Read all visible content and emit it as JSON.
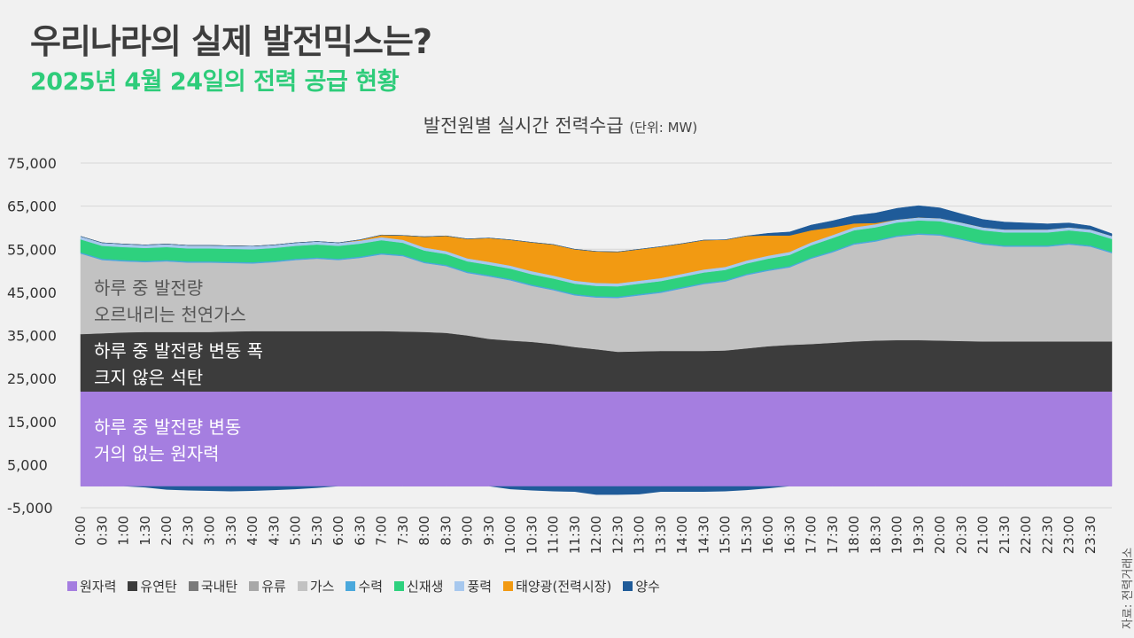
{
  "header": {
    "title": "우리나라의 실제 발전믹스는?",
    "subtitle": "2025년 4월 24일의 전력 공급 현황"
  },
  "chart_title": "발전원별 실시간 전력수급",
  "chart_unit": "(단위: MW)",
  "source": "자료: 전력거래소",
  "annotations": {
    "gas": [
      "하루 중 발전량",
      "오르내리는 천연가스"
    ],
    "coal": [
      "하루 중 발전량 변동 폭",
      "크지 않은 석탄"
    ],
    "nuclear": [
      "하루 중 발전량 변동",
      "거의 없는 원자력"
    ]
  },
  "chart_data": {
    "type": "area",
    "stacked": true,
    "title": "발전원별 실시간 전력수급",
    "unit": "MW",
    "ylim": [
      -5000,
      75000
    ],
    "y_ticks": [
      -5000,
      5000,
      15000,
      25000,
      35000,
      45000,
      55000,
      65000,
      75000
    ],
    "y_tick_labels": [
      "-5,000",
      "5,000",
      "15,000",
      "25,000",
      "35,000",
      "45,000",
      "55,000",
      "65,000",
      "75,000"
    ],
    "x_labels": [
      "0:00",
      "0:30",
      "1:00",
      "1:30",
      "2:00",
      "2:30",
      "3:00",
      "3:30",
      "4:00",
      "4:30",
      "5:00",
      "5:30",
      "6:00",
      "6:30",
      "7:00",
      "7:30",
      "8:00",
      "8:30",
      "9:00",
      "9:30",
      "10:00",
      "10:30",
      "11:00",
      "11:30",
      "12:00",
      "12:30",
      "13:00",
      "13:30",
      "14:00",
      "14:30",
      "15:00",
      "15:30",
      "16:00",
      "16:30",
      "17:00",
      "17:30",
      "18:00",
      "18:30",
      "19:00",
      "19:30",
      "20:00",
      "20:30",
      "21:00",
      "21:30",
      "22:00",
      "22:30",
      "23:00",
      "23:30"
    ],
    "x_hours": [
      0,
      0.5,
      1,
      1.5,
      2,
      2.5,
      3,
      3.5,
      4,
      4.5,
      5,
      5.5,
      6,
      6.5,
      7,
      7.5,
      8,
      8.5,
      9,
      9.5,
      10,
      10.5,
      11,
      11.5,
      12,
      12.5,
      13,
      13.5,
      14,
      14.5,
      15,
      15.5,
      16,
      16.5,
      17,
      17.5,
      18,
      18.5,
      19,
      19.5,
      20,
      20.5,
      21,
      21.5,
      22,
      22.5,
      23,
      23.5,
      24
    ],
    "series": [
      {
        "name": "원자력",
        "color": "#a57ee0",
        "values": [
          22000,
          22000,
          22000,
          22000,
          22000,
          22000,
          22000,
          22000,
          22000,
          22000,
          22000,
          22000,
          22000,
          22000,
          22000,
          22000,
          22000,
          22000,
          22000,
          22000,
          22000,
          22000,
          22000,
          22000,
          22000,
          22000,
          22000,
          22000,
          22000,
          22000,
          22000,
          22000,
          22000,
          22000,
          22000,
          22000,
          22000,
          22000,
          22000,
          22000,
          22000,
          22000,
          22000,
          22000,
          22000,
          22000,
          22000,
          22000,
          22000
        ]
      },
      {
        "name": "유연탄",
        "color": "#3c3c3c",
        "values": [
          13300,
          13500,
          13700,
          13800,
          13800,
          13800,
          13800,
          13900,
          14000,
          14000,
          14000,
          14000,
          14000,
          14000,
          14000,
          13900,
          13800,
          13600,
          13000,
          12200,
          11800,
          11500,
          11000,
          10300,
          9800,
          9200,
          9300,
          9400,
          9400,
          9400,
          9500,
          10000,
          10500,
          10800,
          11000,
          11300,
          11600,
          11800,
          11900,
          11900,
          11800,
          11700,
          11600,
          11600,
          11600,
          11600,
          11600,
          11600,
          11600
        ]
      },
      {
        "name": "국내탄",
        "color": "#7a7a7a",
        "values": [
          0,
          0,
          0,
          0,
          0,
          0,
          0,
          0,
          0,
          0,
          0,
          0,
          0,
          0,
          0,
          0,
          0,
          0,
          0,
          0,
          0,
          0,
          0,
          0,
          0,
          0,
          0,
          0,
          0,
          0,
          0,
          0,
          0,
          0,
          0,
          0,
          0,
          0,
          0,
          0,
          0,
          0,
          0,
          0,
          0,
          0,
          0,
          0,
          0
        ]
      },
      {
        "name": "유류",
        "color": "#a8a8a8",
        "values": [
          0,
          0,
          0,
          0,
          0,
          0,
          0,
          0,
          0,
          0,
          0,
          0,
          0,
          0,
          0,
          0,
          0,
          0,
          0,
          0,
          0,
          0,
          0,
          0,
          0,
          0,
          0,
          0,
          0,
          0,
          0,
          0,
          0,
          0,
          0,
          0,
          0,
          0,
          0,
          0,
          0,
          0,
          0,
          0,
          0,
          0,
          0,
          0,
          0
        ]
      },
      {
        "name": "가스",
        "color": "#c2c2c2",
        "values": [
          18700,
          17000,
          16500,
          16200,
          16400,
          16100,
          16100,
          15900,
          15700,
          16000,
          16500,
          16800,
          16500,
          17000,
          17800,
          17500,
          16000,
          15500,
          14500,
          14500,
          14000,
          13000,
          12500,
          12000,
          12000,
          12500,
          13000,
          13500,
          14500,
          15500,
          16000,
          17000,
          17500,
          18000,
          19800,
          21000,
          22500,
          23000,
          24000,
          24500,
          24400,
          23500,
          22500,
          22000,
          22000,
          22000,
          22500,
          22000,
          20500
        ]
      },
      {
        "name": "수력",
        "color": "#4aa8dc",
        "values": [
          300,
          300,
          300,
          300,
          300,
          300,
          300,
          300,
          300,
          300,
          300,
          300,
          300,
          300,
          300,
          300,
          300,
          300,
          300,
          300,
          300,
          300,
          300,
          300,
          300,
          300,
          300,
          300,
          300,
          300,
          300,
          300,
          300,
          300,
          300,
          300,
          300,
          300,
          300,
          300,
          300,
          300,
          300,
          300,
          300,
          300,
          300,
          300,
          300
        ]
      },
      {
        "name": "신재생",
        "color": "#2ed17e",
        "values": [
          3000,
          3000,
          3000,
          3000,
          3000,
          3000,
          3000,
          3000,
          3000,
          3000,
          3000,
          3000,
          3000,
          3000,
          3000,
          2800,
          2600,
          2500,
          2400,
          2400,
          2400,
          2400,
          2400,
          2400,
          2400,
          2400,
          2400,
          2400,
          2400,
          2400,
          2400,
          2400,
          2500,
          2600,
          2800,
          3000,
          3000,
          3000,
          3000,
          3000,
          3000,
          3000,
          3000,
          3000,
          3000,
          3000,
          3000,
          3000,
          3000
        ]
      },
      {
        "name": "풍력",
        "color": "#a7c8ee",
        "values": [
          700,
          700,
          700,
          700,
          700,
          700,
          700,
          700,
          700,
          700,
          700,
          700,
          700,
          700,
          700,
          700,
          700,
          700,
          700,
          700,
          700,
          700,
          700,
          700,
          700,
          700,
          700,
          700,
          700,
          700,
          700,
          700,
          700,
          700,
          700,
          700,
          700,
          700,
          700,
          700,
          700,
          700,
          700,
          700,
          700,
          700,
          700,
          700,
          700
        ]
      },
      {
        "name": "태양광(전력시장)",
        "color": "#f29a12",
        "values": [
          0,
          0,
          0,
          0,
          0,
          0,
          0,
          0,
          0,
          0,
          0,
          0,
          0,
          200,
          500,
          1000,
          2500,
          3500,
          4500,
          5500,
          6000,
          6700,
          7200,
          7300,
          7300,
          7300,
          7300,
          7300,
          7000,
          6800,
          6300,
          5700,
          4700,
          3800,
          2800,
          1800,
          900,
          300,
          0,
          0,
          0,
          0,
          0,
          0,
          0,
          0,
          0,
          0,
          0
        ]
      },
      {
        "name": "양수",
        "color": "#1f5b99",
        "values": [
          0,
          0,
          0,
          0,
          0,
          0,
          0,
          0,
          0,
          0,
          0,
          0,
          0,
          0,
          0,
          0,
          0,
          0,
          0,
          0,
          0,
          0,
          0,
          0,
          0,
          0,
          0,
          0,
          0,
          0,
          0,
          0,
          500,
          800,
          1200,
          1500,
          1800,
          2300,
          2600,
          2700,
          2400,
          2000,
          1800,
          1700,
          1500,
          1300,
          1000,
          800,
          500
        ]
      },
      {
        "name": "양수 (음수)",
        "color": "#1f5b99",
        "legend": false,
        "values": [
          0,
          0,
          0,
          -300,
          -800,
          -1000,
          -1100,
          -1200,
          -1100,
          -900,
          -700,
          -400,
          0,
          0,
          0,
          0,
          0,
          0,
          0,
          0,
          -700,
          -1000,
          -1200,
          -1300,
          -2000,
          -2000,
          -1900,
          -1300,
          -1300,
          -1300,
          -1200,
          -900,
          -500,
          0,
          0,
          0,
          0,
          0,
          0,
          0,
          0,
          0,
          0,
          0,
          0,
          0,
          0,
          0,
          0
        ]
      }
    ]
  }
}
